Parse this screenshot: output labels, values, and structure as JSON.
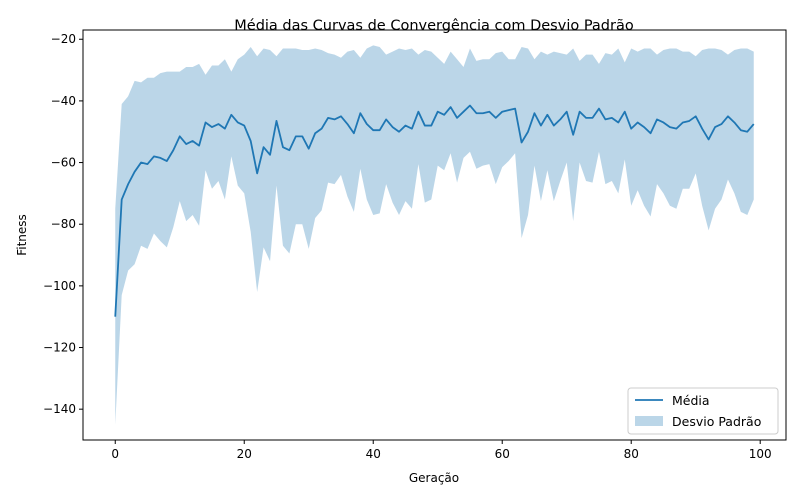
{
  "chart_data": {
    "type": "line",
    "title": "Média das Curvas de Convergência com Desvio Padrão",
    "xlabel": "Geração",
    "ylabel": "Fitness",
    "xlim": [
      -5,
      104
    ],
    "ylim": [
      -150,
      -17
    ],
    "xticks": [
      0,
      20,
      40,
      60,
      80,
      100
    ],
    "yticks": [
      -140,
      -120,
      -100,
      -80,
      -60,
      -40,
      -20
    ],
    "grid": false,
    "legend_position": "lower-right",
    "colors": {
      "mean": "#1f77b4",
      "band": "#1f77b4",
      "band_opacity": 0.3
    },
    "series": [
      {
        "name": "Média",
        "x": [
          0,
          1,
          2,
          3,
          4,
          5,
          6,
          7,
          8,
          9,
          10,
          11,
          12,
          13,
          14,
          15,
          16,
          17,
          18,
          19,
          20,
          21,
          22,
          23,
          24,
          25,
          26,
          27,
          28,
          29,
          30,
          31,
          32,
          33,
          34,
          35,
          36,
          37,
          38,
          39,
          40,
          41,
          42,
          43,
          44,
          45,
          46,
          47,
          48,
          49,
          50,
          51,
          52,
          53,
          54,
          55,
          56,
          57,
          58,
          59,
          60,
          61,
          62,
          63,
          64,
          65,
          66,
          67,
          68,
          69,
          70,
          71,
          72,
          73,
          74,
          75,
          76,
          77,
          78,
          79,
          80,
          81,
          82,
          83,
          84,
          85,
          86,
          87,
          88,
          89,
          90,
          91,
          92,
          93,
          94,
          95,
          96,
          97,
          98,
          99
        ],
        "values": [
          -110,
          -72,
          -67,
          -63,
          -60,
          -60.5,
          -58,
          -58.5,
          -59.5,
          -56,
          -51.5,
          -54,
          -53,
          -54.5,
          -47,
          -48.5,
          -47.5,
          -49,
          -44.5,
          -47,
          -48,
          -53,
          -63.5,
          -55,
          -57.5,
          -46.5,
          -55,
          -56,
          -51.5,
          -51.5,
          -55.5,
          -50.5,
          -49,
          -45.5,
          -46,
          -45,
          -47.5,
          -50.5,
          -44,
          -47.5,
          -49.5,
          -49.5,
          -46,
          -48.5,
          -50,
          -48,
          -49,
          -43.5,
          -48,
          -48,
          -43.5,
          -44.5,
          -42,
          -45.5,
          -43.5,
          -41.5,
          -44,
          -44,
          -43.5,
          -45.5,
          -43.5,
          -43,
          -42.5,
          -53.5,
          -50,
          -44,
          -48,
          -44.5,
          -48,
          -46,
          -43.5,
          -51,
          -43.5,
          -45.5,
          -45.5,
          -42.5,
          -46,
          -45.5,
          -47,
          -43.5,
          -49,
          -47,
          -48.5,
          -50.5,
          -46,
          -47,
          -48.5,
          -49,
          -47,
          -46.5,
          -45,
          -49,
          -52.5,
          -48.5,
          -47.5,
          -45,
          -47,
          -49.5,
          -50,
          -47.5
        ]
      },
      {
        "name": "Desvio Padrão",
        "x": [
          0,
          1,
          2,
          3,
          4,
          5,
          6,
          7,
          8,
          9,
          10,
          11,
          12,
          13,
          14,
          15,
          16,
          17,
          18,
          19,
          20,
          21,
          22,
          23,
          24,
          25,
          26,
          27,
          28,
          29,
          30,
          31,
          32,
          33,
          34,
          35,
          36,
          37,
          38,
          39,
          40,
          41,
          42,
          43,
          44,
          45,
          46,
          47,
          48,
          49,
          50,
          51,
          52,
          53,
          54,
          55,
          56,
          57,
          58,
          59,
          60,
          61,
          62,
          63,
          64,
          65,
          66,
          67,
          68,
          69,
          70,
          71,
          72,
          73,
          74,
          75,
          76,
          77,
          78,
          79,
          80,
          81,
          82,
          83,
          84,
          85,
          86,
          87,
          88,
          89,
          90,
          91,
          92,
          93,
          94,
          95,
          96,
          97,
          98,
          99
        ],
        "upper": [
          -75,
          -41,
          -38.5,
          -33.5,
          -34,
          -32.5,
          -32.5,
          -31,
          -30.5,
          -30.5,
          -30.5,
          -29,
          -29,
          -28,
          -31.5,
          -28.5,
          -28.5,
          -26.5,
          -30.5,
          -26.5,
          -25,
          -22.5,
          -25.5,
          -23,
          -23.5,
          -25.5,
          -23,
          -23,
          -23,
          -23.5,
          -23.5,
          -23,
          -23.5,
          -24.5,
          -25,
          -26,
          -24,
          -23.5,
          -26,
          -23,
          -22,
          -22.5,
          -25,
          -24,
          -23,
          -23.5,
          -23,
          -25,
          -23.5,
          -24,
          -26,
          -28,
          -24,
          -26.5,
          -29,
          -23,
          -27,
          -26.5,
          -26.5,
          -24.5,
          -24,
          -26.5,
          -26.5,
          -22.5,
          -23,
          -26.5,
          -24,
          -25,
          -24,
          -24.5,
          -25,
          -23,
          -27,
          -25,
          -25,
          -28,
          -24.5,
          -25,
          -23,
          -27.5,
          -23,
          -24,
          -23,
          -23,
          -25,
          -23.5,
          -23,
          -23,
          -24,
          -24,
          -25.5,
          -23.5,
          -23,
          -23,
          -23.5,
          -25,
          -23.5,
          -23,
          -23,
          -24
        ],
        "lower": [
          -145,
          -103,
          -95,
          -93,
          -87,
          -88,
          -83,
          -85.5,
          -87.5,
          -81,
          -72.5,
          -79,
          -77,
          -80.5,
          -62.5,
          -68.5,
          -66,
          -72,
          -58,
          -67.5,
          -70,
          -82.5,
          -102,
          -87.5,
          -92,
          -67.5,
          -87,
          -89.5,
          -80,
          -80,
          -88,
          -78,
          -75.5,
          -66.5,
          -67,
          -64,
          -71,
          -76,
          -62,
          -72,
          -77,
          -76.5,
          -67,
          -73,
          -77,
          -72.5,
          -75,
          -60.5,
          -73,
          -72,
          -61,
          -62.5,
          -57,
          -66.5,
          -58.5,
          -56.5,
          -62,
          -61,
          -60.5,
          -67,
          -61.5,
          -59.5,
          -57,
          -84.5,
          -77,
          -61,
          -72.5,
          -62.5,
          -72.5,
          -66,
          -60,
          -79,
          -60,
          -66,
          -66.5,
          -56.5,
          -67,
          -66,
          -70,
          -59,
          -74,
          -69,
          -74,
          -77.5,
          -67,
          -70,
          -74,
          -75,
          -68.5,
          -68.5,
          -63.5,
          -74,
          -82,
          -75,
          -72,
          -65.5,
          -70,
          -76,
          -77,
          -72
        ]
      }
    ],
    "legend": [
      "Média",
      "Desvio Padrão"
    ]
  }
}
